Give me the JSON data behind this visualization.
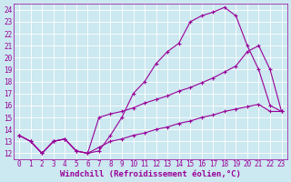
{
  "x": [
    0,
    1,
    2,
    3,
    4,
    5,
    6,
    7,
    8,
    9,
    10,
    11,
    12,
    13,
    14,
    15,
    16,
    17,
    18,
    19,
    20,
    21,
    22,
    23
  ],
  "line_upper": [
    13.5,
    13.0,
    12.0,
    13.0,
    13.2,
    12.2,
    12.0,
    12.2,
    13.5,
    15.0,
    17.0,
    18.0,
    19.5,
    20.5,
    21.2,
    23.0,
    23.5,
    23.8,
    24.2,
    23.5,
    21.0,
    19.0,
    16.0,
    15.5
  ],
  "line_mid": [
    13.5,
    13.0,
    12.0,
    13.0,
    13.2,
    12.2,
    12.0,
    15.0,
    15.3,
    15.5,
    15.8,
    16.2,
    16.5,
    16.8,
    17.2,
    17.5,
    17.9,
    18.3,
    18.8,
    19.3,
    20.5,
    21.0,
    19.0,
    15.5
  ],
  "line_lower": [
    13.5,
    13.0,
    12.0,
    13.0,
    13.2,
    12.2,
    12.0,
    12.5,
    13.0,
    13.2,
    13.5,
    13.7,
    14.0,
    14.2,
    14.5,
    14.7,
    15.0,
    15.2,
    15.5,
    15.7,
    15.9,
    16.1,
    15.5,
    15.5
  ],
  "color": "#990099",
  "bg_color": "#cce8f0",
  "grid_color": "#ffffff",
  "yticks": [
    12,
    13,
    14,
    15,
    16,
    17,
    18,
    19,
    20,
    21,
    22,
    23,
    24
  ],
  "xlabel": "Windchill (Refroidissement éolien,°C)",
  "xlim": [
    -0.5,
    23.5
  ],
  "ylim": [
    11.5,
    24.5
  ],
  "tick_fontsize": 5.5,
  "xlabel_fontsize": 6.5
}
